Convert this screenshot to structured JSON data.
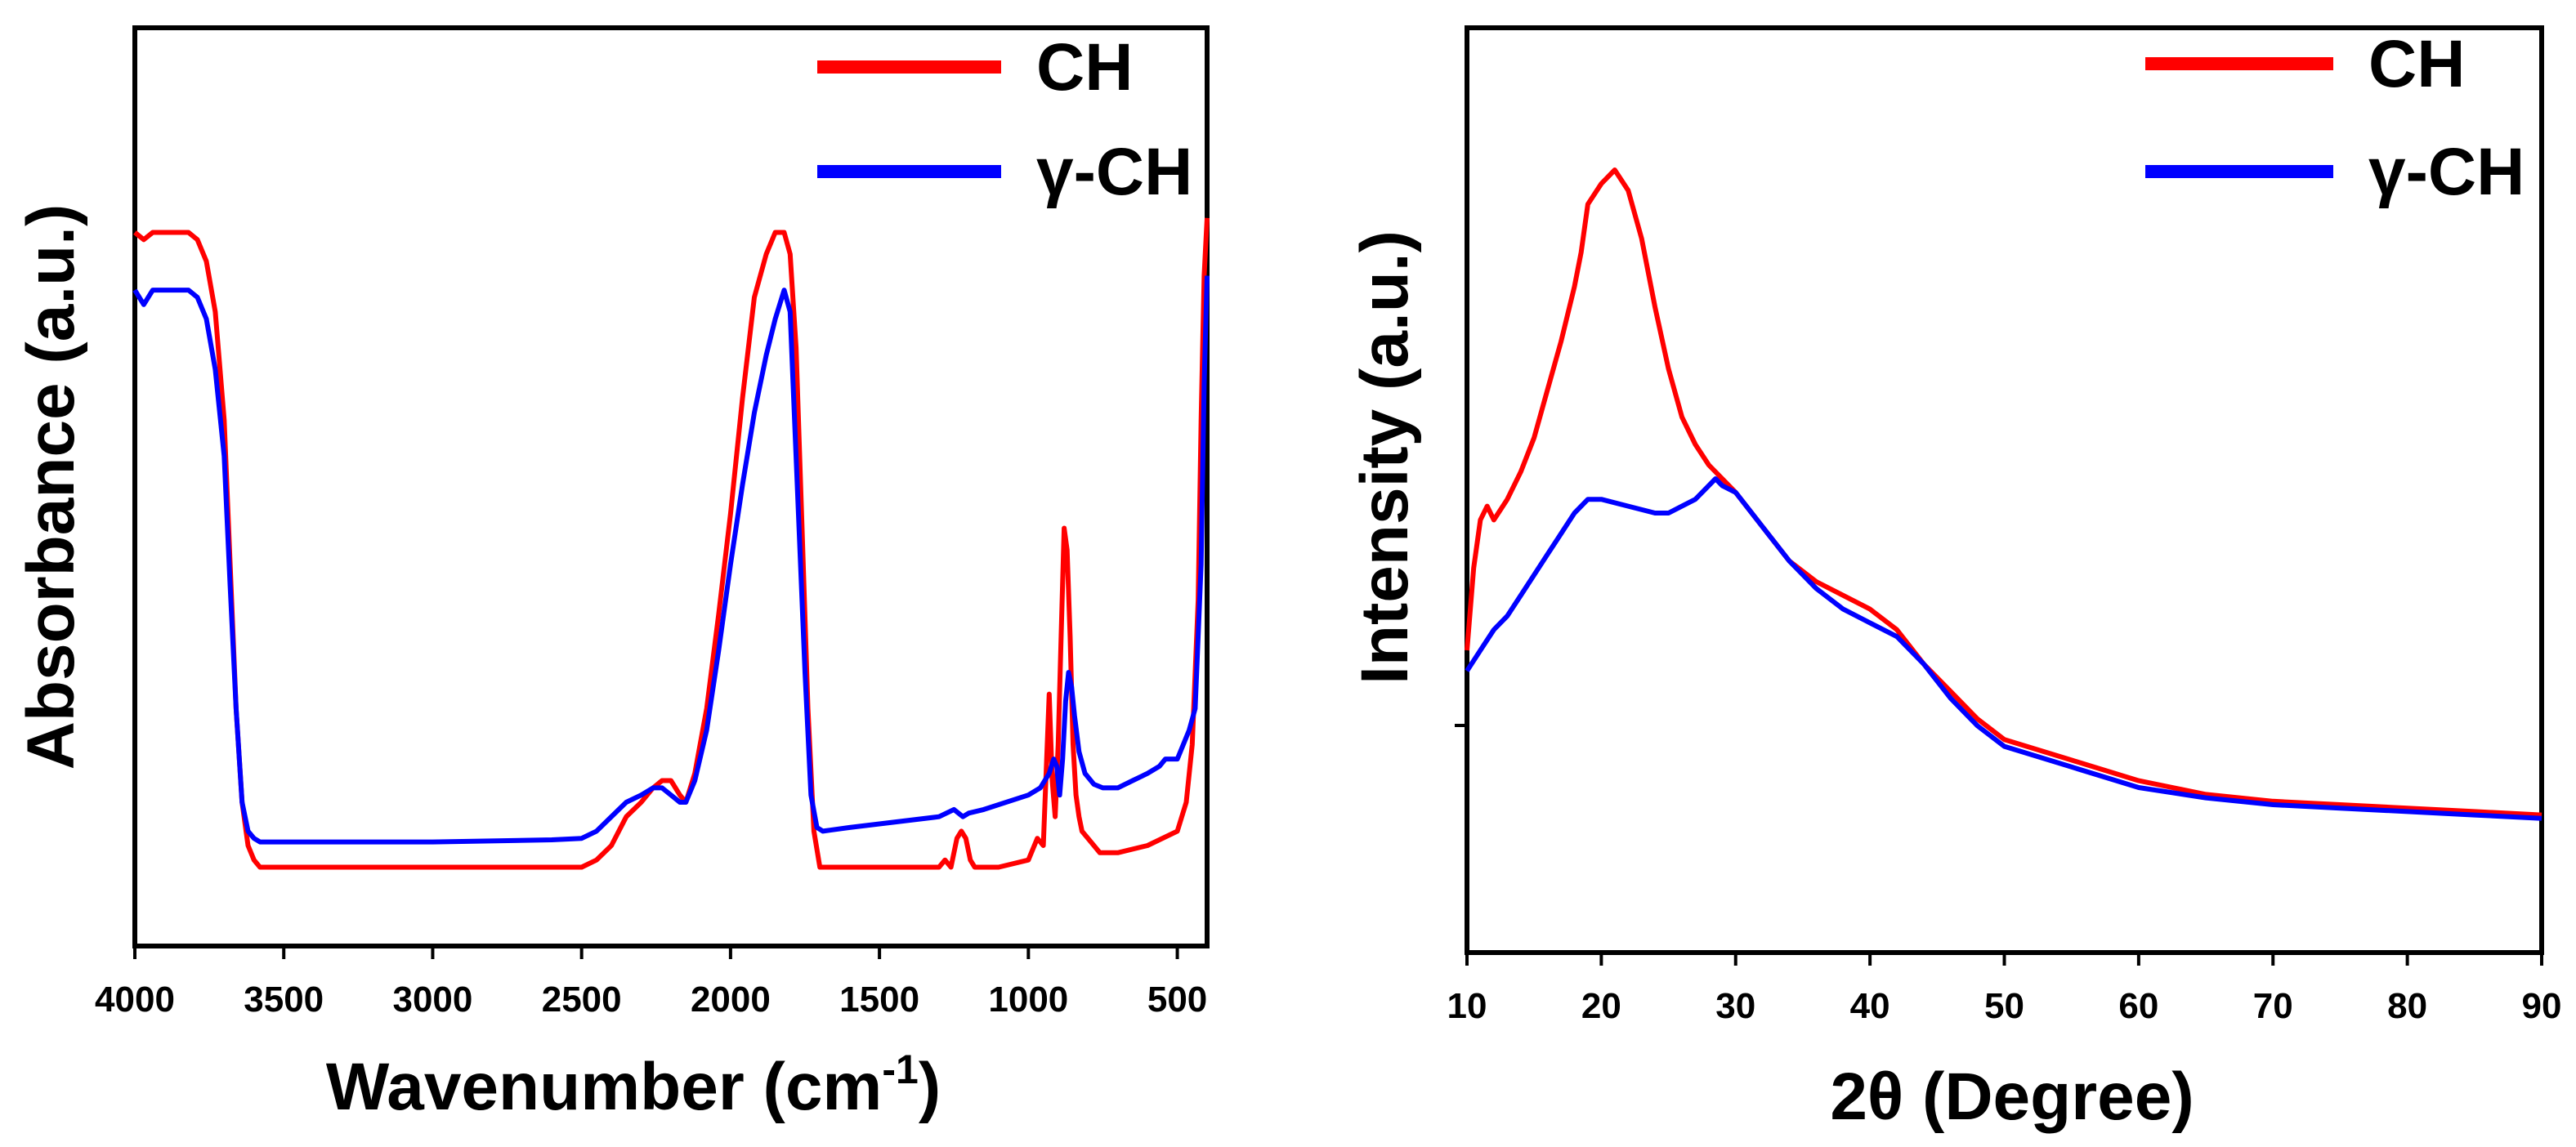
{
  "chart_data": [
    {
      "type": "line",
      "title": "",
      "xlabel": "Wavenumber (cm",
      "xlabel_sup": "-1",
      "xlabel_end": ")",
      "ylabel": "Absorbance (a.u.)",
      "xlim": [
        4000,
        400
      ],
      "ylim": [
        0,
        1
      ],
      "x_reversed": true,
      "grid": false,
      "legend_position": "top-right",
      "xticks": [
        "4000",
        "3500",
        "3000",
        "2500",
        "2000",
        "1500",
        "1000",
        "500"
      ],
      "xtick_values": [
        4000,
        3500,
        3000,
        2500,
        2000,
        1500,
        1000,
        500
      ],
      "series": [
        {
          "name": "CH",
          "color": "#ff0000",
          "x": [
            4000,
            3970,
            3940,
            3900,
            3860,
            3820,
            3790,
            3760,
            3730,
            3700,
            3680,
            3660,
            3640,
            3620,
            3600,
            3580,
            3400,
            3000,
            2600,
            2500,
            2450,
            2400,
            2350,
            2300,
            2260,
            2230,
            2200,
            2170,
            2150,
            2120,
            2080,
            2040,
            2000,
            1960,
            1920,
            1880,
            1850,
            1820,
            1800,
            1780,
            1760,
            1740,
            1720,
            1700,
            1680,
            1600,
            1500,
            1400,
            1300,
            1280,
            1260,
            1240,
            1225,
            1210,
            1195,
            1180,
            1150,
            1100,
            1000,
            970,
            950,
            930,
            920,
            910,
            900,
            890,
            880,
            870,
            860,
            850,
            840,
            830,
            820,
            800,
            760,
            700,
            600,
            500,
            470,
            450,
            430,
            420,
            410,
            400
          ],
          "values": [
            0.91,
            0.9,
            0.91,
            0.91,
            0.91,
            0.91,
            0.9,
            0.87,
            0.8,
            0.65,
            0.45,
            0.25,
            0.12,
            0.06,
            0.04,
            0.03,
            0.03,
            0.03,
            0.03,
            0.03,
            0.04,
            0.06,
            0.1,
            0.12,
            0.14,
            0.15,
            0.15,
            0.13,
            0.12,
            0.16,
            0.25,
            0.38,
            0.52,
            0.68,
            0.82,
            0.88,
            0.91,
            0.91,
            0.88,
            0.75,
            0.5,
            0.25,
            0.08,
            0.03,
            0.03,
            0.03,
            0.03,
            0.03,
            0.03,
            0.04,
            0.03,
            0.07,
            0.08,
            0.07,
            0.04,
            0.03,
            0.03,
            0.03,
            0.04,
            0.07,
            0.06,
            0.27,
            0.15,
            0.1,
            0.2,
            0.35,
            0.5,
            0.47,
            0.35,
            0.2,
            0.13,
            0.1,
            0.08,
            0.07,
            0.05,
            0.05,
            0.06,
            0.08,
            0.12,
            0.2,
            0.4,
            0.65,
            0.85,
            0.93
          ]
        },
        {
          "name": "γ-CH",
          "color": "#0000ff",
          "x": [
            4000,
            3970,
            3940,
            3900,
            3860,
            3820,
            3790,
            3760,
            3730,
            3700,
            3680,
            3660,
            3640,
            3620,
            3600,
            3580,
            3400,
            3000,
            2600,
            2500,
            2450,
            2400,
            2350,
            2300,
            2260,
            2230,
            2200,
            2170,
            2150,
            2120,
            2080,
            2040,
            2000,
            1960,
            1920,
            1880,
            1850,
            1820,
            1800,
            1790,
            1770,
            1750,
            1730,
            1710,
            1690,
            1600,
            1500,
            1300,
            1250,
            1220,
            1200,
            1150,
            1000,
            960,
            930,
            915,
            905,
            895,
            885,
            875,
            865,
            855,
            845,
            830,
            810,
            780,
            750,
            700,
            650,
            600,
            560,
            540,
            500,
            460,
            440,
            420,
            410,
            400
          ],
          "values": [
            0.83,
            0.81,
            0.83,
            0.83,
            0.83,
            0.83,
            0.82,
            0.79,
            0.72,
            0.6,
            0.42,
            0.25,
            0.12,
            0.08,
            0.07,
            0.065,
            0.065,
            0.065,
            0.068,
            0.07,
            0.08,
            0.1,
            0.12,
            0.13,
            0.14,
            0.14,
            0.13,
            0.12,
            0.12,
            0.15,
            0.22,
            0.33,
            0.45,
            0.56,
            0.66,
            0.74,
            0.79,
            0.83,
            0.8,
            0.7,
            0.5,
            0.3,
            0.13,
            0.085,
            0.08,
            0.085,
            0.09,
            0.1,
            0.11,
            0.1,
            0.105,
            0.11,
            0.13,
            0.14,
            0.16,
            0.18,
            0.17,
            0.13,
            0.18,
            0.26,
            0.3,
            0.28,
            0.24,
            0.19,
            0.16,
            0.145,
            0.14,
            0.14,
            0.15,
            0.16,
            0.17,
            0.18,
            0.18,
            0.22,
            0.25,
            0.45,
            0.7,
            0.85
          ]
        }
      ]
    },
    {
      "type": "line",
      "title": "",
      "xlabel": "2θ (Degree)",
      "ylabel": "Intensity (a.u.)",
      "xlim": [
        10,
        90
      ],
      "ylim": [
        0,
        1
      ],
      "grid": false,
      "legend_position": "top-right",
      "xticks": [
        "10",
        "20",
        "30",
        "40",
        "50",
        "60",
        "70",
        "80",
        "90"
      ],
      "xtick_values": [
        10,
        20,
        30,
        40,
        50,
        60,
        70,
        80,
        90
      ],
      "series": [
        {
          "name": "CH",
          "color": "#ff0000",
          "x": [
            10,
            10.5,
            11,
            11.5,
            12,
            13,
            14,
            15,
            16,
            17,
            18,
            18.5,
            19,
            20,
            21,
            22,
            23,
            24,
            25,
            26,
            27,
            28,
            30,
            32,
            34,
            36,
            38,
            40,
            42,
            44,
            46,
            48,
            50,
            55,
            60,
            65,
            70,
            75,
            80,
            85,
            90
          ],
          "values": [
            0.3,
            0.42,
            0.49,
            0.51,
            0.49,
            0.52,
            0.56,
            0.61,
            0.68,
            0.75,
            0.83,
            0.88,
            0.95,
            0.98,
            1.0,
            0.97,
            0.9,
            0.8,
            0.71,
            0.64,
            0.6,
            0.57,
            0.53,
            0.48,
            0.43,
            0.4,
            0.38,
            0.36,
            0.33,
            0.28,
            0.24,
            0.2,
            0.17,
            0.14,
            0.11,
            0.09,
            0.08,
            0.075,
            0.07,
            0.065,
            0.06
          ]
        },
        {
          "name": "γ-CH",
          "color": "#0000ff",
          "x": [
            10,
            11,
            12,
            13,
            14,
            15,
            16,
            17,
            18,
            19,
            20,
            22,
            24,
            25,
            26,
            27,
            28,
            28.5,
            29,
            30,
            32,
            34,
            36,
            38,
            40,
            42,
            44,
            46,
            48,
            50,
            55,
            60,
            65,
            70,
            75,
            80,
            85,
            90
          ],
          "values": [
            0.27,
            0.3,
            0.33,
            0.35,
            0.38,
            0.41,
            0.44,
            0.47,
            0.5,
            0.52,
            0.52,
            0.51,
            0.5,
            0.5,
            0.51,
            0.52,
            0.54,
            0.55,
            0.54,
            0.53,
            0.48,
            0.43,
            0.39,
            0.36,
            0.34,
            0.32,
            0.28,
            0.23,
            0.19,
            0.16,
            0.13,
            0.1,
            0.085,
            0.075,
            0.07,
            0.065,
            0.06,
            0.055
          ]
        }
      ]
    }
  ]
}
